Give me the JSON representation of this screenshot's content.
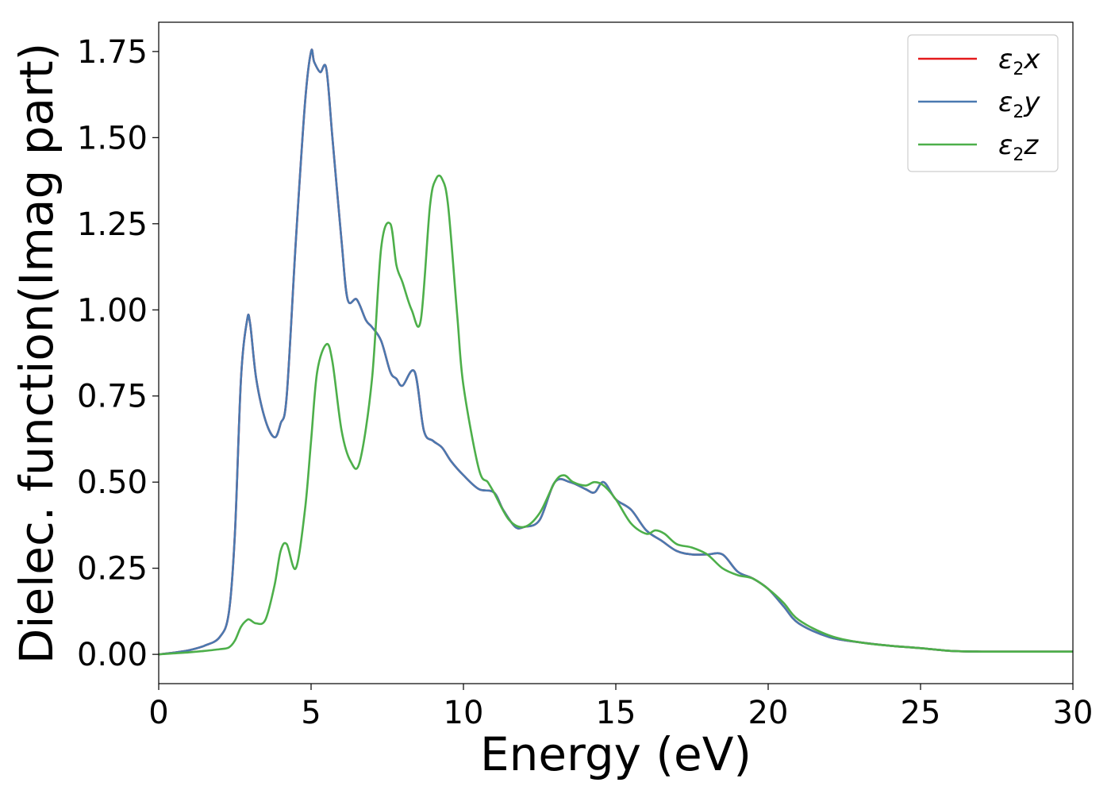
{
  "chart_data": {
    "type": "line",
    "xlabel": "Energy (eV)",
    "ylabel": "Dielec. function(Imag part)",
    "xlim": [
      0,
      30
    ],
    "ylim": [
      -0.085,
      1.835
    ],
    "xticks": [
      0,
      5,
      10,
      15,
      20,
      25,
      30
    ],
    "xtick_labels": [
      "0",
      "5",
      "10",
      "15",
      "20",
      "25",
      "30"
    ],
    "yticks": [
      0,
      0.25,
      0.5,
      0.75,
      1.0,
      1.25,
      1.5,
      1.75
    ],
    "ytick_labels": [
      "0.00",
      "0.25",
      "0.50",
      "0.75",
      "1.00",
      "1.25",
      "1.50",
      "1.75"
    ],
    "grid": false,
    "legend_position": "top-right",
    "series": [
      {
        "name": "x",
        "legend_symbol": "ε",
        "legend_subscript": "2",
        "color": "#e41a1c",
        "x": [
          0,
          0.5,
          1,
          1.5,
          2,
          2.3,
          2.5,
          2.7,
          2.9,
          3.0,
          3.2,
          3.5,
          3.8,
          4.0,
          4.2,
          4.5,
          4.8,
          5.0,
          5.1,
          5.3,
          5.5,
          5.7,
          6.0,
          6.2,
          6.5,
          6.8,
          7.0,
          7.3,
          7.6,
          7.8,
          8.0,
          8.4,
          8.7,
          9.0,
          9.3,
          9.6,
          10.0,
          10.5,
          11.0,
          11.3,
          11.7,
          12.0,
          12.5,
          13.0,
          13.5,
          14.0,
          14.3,
          14.6,
          15.0,
          15.5,
          16.0,
          16.5,
          17.0,
          17.5,
          18.0,
          18.5,
          19.0,
          19.5,
          20.0,
          20.5,
          21.0,
          22.0,
          23.0,
          24.0,
          25.0,
          26.0,
          27.0,
          28.0,
          29.0,
          30.0
        ],
        "y": [
          0.0,
          0.005,
          0.012,
          0.025,
          0.05,
          0.12,
          0.35,
          0.8,
          0.97,
          0.96,
          0.8,
          0.68,
          0.63,
          0.67,
          0.75,
          1.2,
          1.6,
          1.75,
          1.72,
          1.69,
          1.7,
          1.5,
          1.2,
          1.03,
          1.03,
          0.97,
          0.95,
          0.91,
          0.82,
          0.8,
          0.78,
          0.82,
          0.65,
          0.62,
          0.6,
          0.56,
          0.52,
          0.48,
          0.47,
          0.42,
          0.37,
          0.37,
          0.39,
          0.5,
          0.5,
          0.48,
          0.47,
          0.5,
          0.45,
          0.42,
          0.36,
          0.33,
          0.3,
          0.29,
          0.29,
          0.29,
          0.24,
          0.22,
          0.19,
          0.14,
          0.09,
          0.05,
          0.035,
          0.025,
          0.018,
          0.01,
          0.008,
          0.008,
          0.008,
          0.008
        ]
      },
      {
        "name": "y",
        "legend_symbol": "ε",
        "legend_subscript": "2",
        "color": "#4a79b0",
        "x": [
          0,
          0.5,
          1,
          1.5,
          2,
          2.3,
          2.5,
          2.7,
          2.9,
          3.0,
          3.2,
          3.5,
          3.8,
          4.0,
          4.2,
          4.5,
          4.8,
          5.0,
          5.1,
          5.3,
          5.5,
          5.7,
          6.0,
          6.2,
          6.5,
          6.8,
          7.0,
          7.3,
          7.6,
          7.8,
          8.0,
          8.4,
          8.7,
          9.0,
          9.3,
          9.6,
          10.0,
          10.5,
          11.0,
          11.3,
          11.7,
          12.0,
          12.5,
          13.0,
          13.5,
          14.0,
          14.3,
          14.6,
          15.0,
          15.5,
          16.0,
          16.5,
          17.0,
          17.5,
          18.0,
          18.5,
          19.0,
          19.5,
          20.0,
          20.5,
          21.0,
          22.0,
          23.0,
          24.0,
          25.0,
          26.0,
          27.0,
          28.0,
          29.0,
          30.0
        ],
        "y": [
          0.0,
          0.005,
          0.012,
          0.025,
          0.05,
          0.12,
          0.35,
          0.8,
          0.97,
          0.96,
          0.8,
          0.68,
          0.63,
          0.67,
          0.75,
          1.2,
          1.6,
          1.75,
          1.72,
          1.69,
          1.7,
          1.5,
          1.2,
          1.03,
          1.03,
          0.97,
          0.95,
          0.91,
          0.82,
          0.8,
          0.78,
          0.82,
          0.65,
          0.62,
          0.6,
          0.56,
          0.52,
          0.48,
          0.47,
          0.42,
          0.37,
          0.37,
          0.39,
          0.5,
          0.5,
          0.48,
          0.47,
          0.5,
          0.45,
          0.42,
          0.36,
          0.33,
          0.3,
          0.29,
          0.29,
          0.29,
          0.24,
          0.22,
          0.19,
          0.14,
          0.09,
          0.05,
          0.035,
          0.025,
          0.018,
          0.01,
          0.008,
          0.008,
          0.008,
          0.008
        ]
      },
      {
        "name": "z",
        "legend_symbol": "ε",
        "legend_subscript": "2",
        "color": "#4daf4a",
        "x": [
          0,
          0.5,
          1,
          1.5,
          2,
          2.3,
          2.5,
          2.7,
          2.9,
          3.0,
          3.2,
          3.5,
          3.8,
          4.0,
          4.2,
          4.5,
          4.8,
          5.0,
          5.2,
          5.5,
          5.7,
          6.0,
          6.3,
          6.6,
          7.0,
          7.3,
          7.6,
          7.8,
          8.0,
          8.3,
          8.6,
          8.9,
          9.1,
          9.3,
          9.5,
          9.8,
          10.0,
          10.5,
          10.8,
          11.0,
          11.5,
          12.0,
          12.5,
          13.0,
          13.3,
          13.6,
          14.0,
          14.3,
          14.6,
          15.0,
          15.5,
          16.0,
          16.3,
          16.6,
          17.0,
          17.5,
          18.0,
          18.5,
          19.0,
          19.5,
          20.0,
          20.5,
          21.0,
          22.0,
          23.0,
          24.0,
          25.0,
          26.0,
          27.0,
          28.0,
          29.0,
          30.0
        ],
        "y": [
          0.0,
          0.003,
          0.006,
          0.01,
          0.015,
          0.02,
          0.04,
          0.08,
          0.1,
          0.1,
          0.09,
          0.1,
          0.2,
          0.3,
          0.32,
          0.25,
          0.42,
          0.62,
          0.82,
          0.9,
          0.85,
          0.65,
          0.56,
          0.56,
          0.8,
          1.18,
          1.25,
          1.13,
          1.08,
          1.0,
          0.97,
          1.3,
          1.38,
          1.38,
          1.3,
          0.98,
          0.78,
          0.54,
          0.5,
          0.47,
          0.39,
          0.37,
          0.41,
          0.5,
          0.52,
          0.5,
          0.49,
          0.5,
          0.49,
          0.45,
          0.38,
          0.35,
          0.36,
          0.35,
          0.32,
          0.31,
          0.29,
          0.25,
          0.23,
          0.22,
          0.19,
          0.15,
          0.1,
          0.055,
          0.035,
          0.025,
          0.018,
          0.01,
          0.008,
          0.008,
          0.008,
          0.008
        ]
      }
    ]
  }
}
